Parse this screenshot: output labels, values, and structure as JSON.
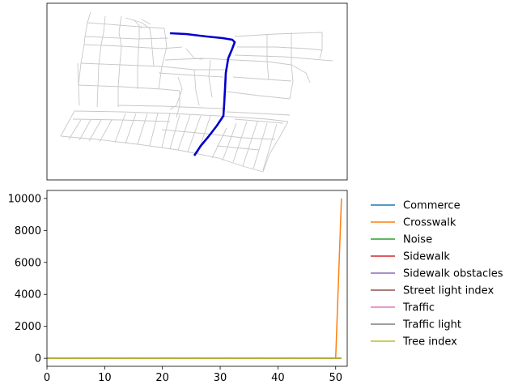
{
  "chart_data": [
    {
      "type": "line",
      "panel": "map",
      "description_visible": false,
      "street_network_color": "#c8c8c8",
      "route_color": "#0000cc",
      "axes": {
        "ticks": "none"
      }
    },
    {
      "type": "line",
      "panel": "feature-values",
      "xlim": [
        0,
        52
      ],
      "ylim": [
        -500,
        10500
      ],
      "x_ticks": [
        0,
        10,
        20,
        30,
        40,
        50
      ],
      "y_ticks": [
        0,
        2000,
        4000,
        6000,
        8000,
        10000
      ],
      "x_tick_labels": [
        "0",
        "10",
        "20",
        "30",
        "40",
        "50"
      ],
      "y_tick_labels": [
        "0",
        "2000",
        "4000",
        "6000",
        "8000",
        "10000"
      ],
      "grid": false,
      "legend_placement": "outside-right",
      "x": [
        0,
        1,
        2,
        3,
        4,
        5,
        6,
        7,
        8,
        9,
        10,
        11,
        12,
        13,
        14,
        15,
        16,
        17,
        18,
        19,
        20,
        21,
        22,
        23,
        24,
        25,
        26,
        27,
        28,
        29,
        30,
        31,
        32,
        33,
        34,
        35,
        36,
        37,
        38,
        39,
        40,
        41,
        42,
        43,
        44,
        45,
        46,
        47,
        48,
        49,
        50,
        51
      ],
      "series": [
        {
          "name": "Commerce",
          "color": "#1f77b4",
          "values": [
            0,
            0,
            0,
            0,
            0,
            0,
            0,
            0,
            0,
            0,
            0,
            0,
            0,
            0,
            0,
            0,
            0,
            0,
            0,
            0,
            0,
            0,
            0,
            0,
            0,
            0,
            0,
            0,
            0,
            0,
            0,
            0,
            0,
            0,
            0,
            0,
            0,
            0,
            0,
            0,
            0,
            0,
            0,
            0,
            0,
            0,
            0,
            0,
            0,
            0,
            0,
            0
          ]
        },
        {
          "name": "Crosswalk",
          "color": "#ff7f0e",
          "values": [
            0,
            0,
            0,
            0,
            0,
            0,
            0,
            0,
            0,
            0,
            0,
            0,
            0,
            0,
            0,
            0,
            0,
            0,
            0,
            0,
            0,
            0,
            0,
            0,
            0,
            0,
            0,
            0,
            0,
            0,
            0,
            0,
            0,
            0,
            0,
            0,
            0,
            0,
            0,
            0,
            0,
            0,
            0,
            0,
            0,
            0,
            0,
            0,
            0,
            0,
            0,
            10000
          ]
        },
        {
          "name": "Noise",
          "color": "#2ca02c",
          "values": [
            0,
            0,
            0,
            0,
            0,
            0,
            0,
            0,
            0,
            0,
            0,
            0,
            0,
            0,
            0,
            0,
            0,
            0,
            0,
            0,
            0,
            0,
            0,
            0,
            0,
            0,
            0,
            0,
            0,
            0,
            0,
            0,
            0,
            0,
            0,
            0,
            0,
            0,
            0,
            0,
            0,
            0,
            0,
            0,
            0,
            0,
            0,
            0,
            0,
            0,
            0,
            0
          ]
        },
        {
          "name": "Sidewalk",
          "color": "#d62728",
          "values": [
            0,
            0,
            0,
            0,
            0,
            0,
            0,
            0,
            0,
            0,
            0,
            0,
            0,
            0,
            0,
            0,
            0,
            0,
            0,
            0,
            0,
            0,
            0,
            0,
            0,
            0,
            0,
            0,
            0,
            0,
            0,
            0,
            0,
            0,
            0,
            0,
            0,
            0,
            0,
            0,
            0,
            0,
            0,
            0,
            0,
            0,
            0,
            0,
            0,
            0,
            0,
            0
          ]
        },
        {
          "name": "Sidewalk obstacles",
          "color": "#9467bd",
          "values": [
            0,
            0,
            0,
            0,
            0,
            0,
            0,
            0,
            0,
            0,
            0,
            0,
            0,
            0,
            0,
            0,
            0,
            0,
            0,
            0,
            0,
            0,
            0,
            0,
            0,
            0,
            0,
            0,
            0,
            0,
            0,
            0,
            0,
            0,
            0,
            0,
            0,
            0,
            0,
            0,
            0,
            0,
            0,
            0,
            0,
            0,
            0,
            0,
            0,
            0,
            0,
            0
          ]
        },
        {
          "name": "Street light index",
          "color": "#8c564b",
          "values": [
            0,
            0,
            0,
            0,
            0,
            0,
            0,
            0,
            0,
            0,
            0,
            0,
            0,
            0,
            0,
            0,
            0,
            0,
            0,
            0,
            0,
            0,
            0,
            0,
            0,
            0,
            0,
            0,
            0,
            0,
            0,
            0,
            0,
            0,
            0,
            0,
            0,
            0,
            0,
            0,
            0,
            0,
            0,
            0,
            0,
            0,
            0,
            0,
            0,
            0,
            0,
            0
          ]
        },
        {
          "name": "Traffic",
          "color": "#e377c2",
          "values": [
            0,
            0,
            0,
            0,
            0,
            0,
            0,
            0,
            0,
            0,
            0,
            0,
            0,
            0,
            0,
            0,
            0,
            0,
            0,
            0,
            0,
            0,
            0,
            0,
            0,
            0,
            0,
            0,
            0,
            0,
            0,
            0,
            0,
            0,
            0,
            0,
            0,
            0,
            0,
            0,
            0,
            0,
            0,
            0,
            0,
            0,
            0,
            0,
            0,
            0,
            0,
            0
          ]
        },
        {
          "name": "Traffic light",
          "color": "#7f7f7f",
          "values": [
            0,
            0,
            0,
            0,
            0,
            0,
            0,
            0,
            0,
            0,
            0,
            0,
            0,
            0,
            0,
            0,
            0,
            0,
            0,
            0,
            0,
            0,
            0,
            0,
            0,
            0,
            0,
            0,
            0,
            0,
            0,
            0,
            0,
            0,
            0,
            0,
            0,
            0,
            0,
            0,
            0,
            0,
            0,
            0,
            0,
            0,
            0,
            0,
            0,
            0,
            0,
            0
          ]
        },
        {
          "name": "Tree index",
          "color": "#bcbd22",
          "values": [
            5,
            3,
            6,
            4,
            5,
            3,
            4,
            6,
            5,
            4,
            3,
            5,
            6,
            4,
            5,
            3,
            4,
            5,
            6,
            4,
            5,
            3,
            4,
            6,
            5,
            4,
            3,
            5,
            6,
            4,
            5,
            3,
            4,
            5,
            6,
            4,
            5,
            3,
            4,
            6,
            5,
            4,
            3,
            5,
            6,
            4,
            5,
            3,
            4,
            5,
            6,
            4
          ]
        }
      ]
    }
  ]
}
